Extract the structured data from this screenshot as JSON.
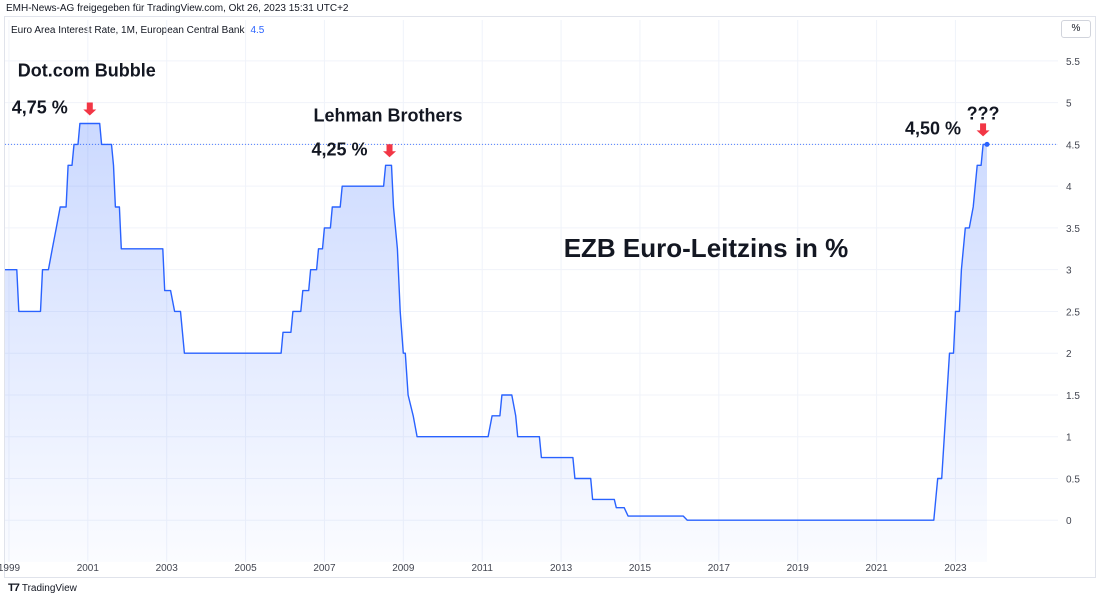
{
  "header": {
    "caption": "EMH-News-AG freigegeben für TradingView.com, Okt 26, 2023 15:31 UTC+2",
    "symbol": "Euro Area Interest Rate, 1M, European Central Bank",
    "symbol_value": "4.5",
    "unit_label": "%"
  },
  "footer": {
    "brand": "TradingView",
    "brand_icon": "tradingview-logo-icon"
  },
  "colors": {
    "line": "#2962ff",
    "arrow": "#f23645",
    "grid": "#f0f3fa",
    "text": "#131722",
    "axis_text": "#434651"
  },
  "chart_data": {
    "type": "area",
    "title": "EZB Euro-Leitzins in %",
    "xlabel": "",
    "ylabel": "",
    "x_ticks": [
      "1999",
      "2001",
      "2003",
      "2005",
      "2007",
      "2009",
      "2011",
      "2013",
      "2015",
      "2017",
      "2019",
      "2021",
      "2023"
    ],
    "y_ticks": [
      "0",
      "0.5",
      "1",
      "1.5",
      "2",
      "2.5",
      "3",
      "3.5",
      "4",
      "4.5",
      "5",
      "5.5"
    ],
    "xlim": [
      1998.9,
      2025.6
    ],
    "ylim": [
      -0.5,
      5.75
    ],
    "last_value": 4.5,
    "grid": true,
    "series": [
      {
        "points": [
          [
            1998.9,
            3.0
          ],
          [
            1999.2,
            3.0
          ],
          [
            1999.25,
            2.5
          ],
          [
            1999.8,
            2.5
          ],
          [
            1999.85,
            3.0
          ],
          [
            2000.0,
            3.0
          ],
          [
            2000.1,
            3.25
          ],
          [
            2000.2,
            3.5
          ],
          [
            2000.3,
            3.75
          ],
          [
            2000.45,
            3.75
          ],
          [
            2000.5,
            4.25
          ],
          [
            2000.6,
            4.25
          ],
          [
            2000.65,
            4.5
          ],
          [
            2000.75,
            4.5
          ],
          [
            2000.8,
            4.75
          ],
          [
            2001.3,
            4.75
          ],
          [
            2001.35,
            4.5
          ],
          [
            2001.6,
            4.5
          ],
          [
            2001.65,
            4.25
          ],
          [
            2001.7,
            3.75
          ],
          [
            2001.8,
            3.75
          ],
          [
            2001.85,
            3.25
          ],
          [
            2002.9,
            3.25
          ],
          [
            2002.95,
            2.75
          ],
          [
            2003.1,
            2.75
          ],
          [
            2003.2,
            2.5
          ],
          [
            2003.35,
            2.5
          ],
          [
            2003.45,
            2.0
          ],
          [
            2005.9,
            2.0
          ],
          [
            2005.95,
            2.25
          ],
          [
            2006.15,
            2.25
          ],
          [
            2006.2,
            2.5
          ],
          [
            2006.4,
            2.5
          ],
          [
            2006.45,
            2.75
          ],
          [
            2006.6,
            2.75
          ],
          [
            2006.65,
            3.0
          ],
          [
            2006.8,
            3.0
          ],
          [
            2006.85,
            3.25
          ],
          [
            2006.95,
            3.25
          ],
          [
            2007.0,
            3.5
          ],
          [
            2007.15,
            3.5
          ],
          [
            2007.2,
            3.75
          ],
          [
            2007.4,
            3.75
          ],
          [
            2007.45,
            4.0
          ],
          [
            2008.5,
            4.0
          ],
          [
            2008.55,
            4.25
          ],
          [
            2008.7,
            4.25
          ],
          [
            2008.75,
            3.75
          ],
          [
            2008.85,
            3.25
          ],
          [
            2008.92,
            2.5
          ],
          [
            2009.0,
            2.0
          ],
          [
            2009.05,
            2.0
          ],
          [
            2009.12,
            1.5
          ],
          [
            2009.25,
            1.25
          ],
          [
            2009.35,
            1.0
          ],
          [
            2011.15,
            1.0
          ],
          [
            2011.25,
            1.25
          ],
          [
            2011.45,
            1.25
          ],
          [
            2011.5,
            1.5
          ],
          [
            2011.75,
            1.5
          ],
          [
            2011.85,
            1.25
          ],
          [
            2011.9,
            1.0
          ],
          [
            2012.45,
            1.0
          ],
          [
            2012.5,
            0.75
          ],
          [
            2013.3,
            0.75
          ],
          [
            2013.35,
            0.5
          ],
          [
            2013.75,
            0.5
          ],
          [
            2013.8,
            0.25
          ],
          [
            2014.35,
            0.25
          ],
          [
            2014.4,
            0.15
          ],
          [
            2014.6,
            0.15
          ],
          [
            2014.7,
            0.05
          ],
          [
            2016.1,
            0.05
          ],
          [
            2016.2,
            0.0
          ],
          [
            2022.45,
            0.0
          ],
          [
            2022.55,
            0.5
          ],
          [
            2022.65,
            0.5
          ],
          [
            2022.75,
            1.25
          ],
          [
            2022.85,
            2.0
          ],
          [
            2022.95,
            2.0
          ],
          [
            2023.0,
            2.5
          ],
          [
            2023.1,
            2.5
          ],
          [
            2023.15,
            3.0
          ],
          [
            2023.25,
            3.5
          ],
          [
            2023.35,
            3.5
          ],
          [
            2023.45,
            3.75
          ],
          [
            2023.5,
            4.0
          ],
          [
            2023.55,
            4.25
          ],
          [
            2023.65,
            4.25
          ],
          [
            2023.7,
            4.5
          ],
          [
            2023.8,
            4.5
          ]
        ]
      }
    ],
    "annotations": [
      {
        "id": "dotcom",
        "title": "Dot.com Bubble",
        "value_text": "4,75 %",
        "arrow_x": 2001.05,
        "arrow_y": 4.75
      },
      {
        "id": "lehman",
        "title": "Lehman Brothers",
        "value_text": "4,25 %",
        "arrow_x": 2008.65,
        "arrow_y": 4.25
      },
      {
        "id": "current",
        "title": "???",
        "value_text": "4,50 %",
        "arrow_x": 2023.7,
        "arrow_y": 4.5
      }
    ]
  }
}
